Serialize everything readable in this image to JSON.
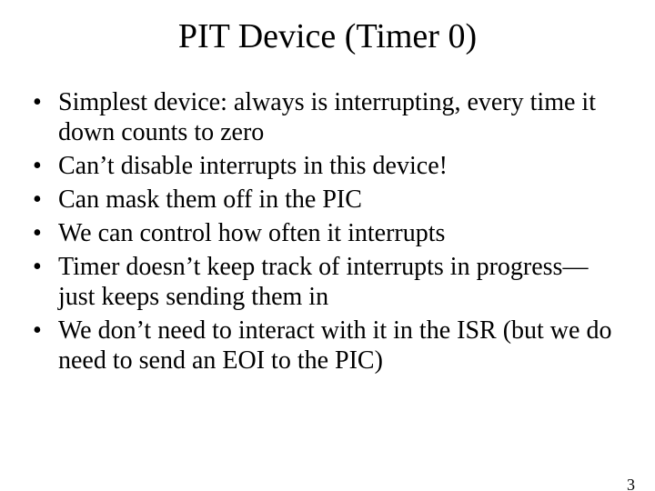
{
  "title": "PIT Device (Timer 0)",
  "bullets": [
    "Simplest device: always is interrupting, every time it down counts to zero",
    "Can’t disable interrupts in this device!",
    "Can mask them off in the PIC",
    "We can control how often it interrupts",
    "Timer doesn’t keep track of interrupts in progress—just keeps sending them in",
    "We don’t need to interact with it in the ISR (but we do need to send an EOI to the PIC)"
  ],
  "page_number": "3",
  "colors": {
    "background": "#ffffff",
    "text": "#000000"
  },
  "typography": {
    "font_family": "Times New Roman",
    "title_fontsize": 38,
    "body_fontsize": 28,
    "pagenum_fontsize": 18
  }
}
